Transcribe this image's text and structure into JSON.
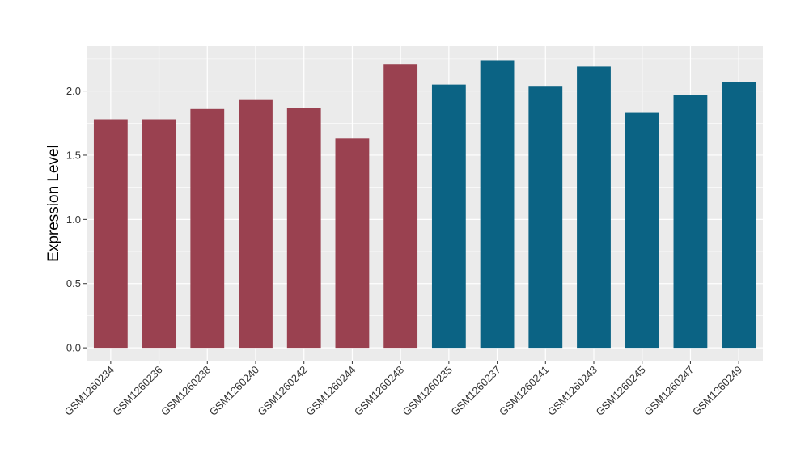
{
  "chart_data": {
    "type": "bar",
    "title": "",
    "xlabel": "",
    "ylabel": "Expression Level",
    "ylim": [
      -0.1,
      2.35
    ],
    "yticks": [
      0.0,
      0.5,
      1.0,
      1.5,
      2.0
    ],
    "ytick_labels": [
      "0.0",
      "0.5",
      "1.0",
      "1.5",
      "2.0"
    ],
    "grid": true,
    "legend": "none",
    "categories": [
      "GSM1260234",
      "GSM1260236",
      "GSM1260238",
      "GSM1260240",
      "GSM1260242",
      "GSM1260244",
      "GSM1260248",
      "GSM1260235",
      "GSM1260237",
      "GSM1260241",
      "GSM1260243",
      "GSM1260245",
      "GSM1260247",
      "GSM1260249"
    ],
    "values": [
      1.78,
      1.78,
      1.86,
      1.93,
      1.87,
      1.63,
      2.21,
      2.05,
      2.24,
      2.04,
      2.19,
      1.83,
      1.97,
      2.07
    ],
    "bar_colors": [
      "#9a4150",
      "#9a4150",
      "#9a4150",
      "#9a4150",
      "#9a4150",
      "#9a4150",
      "#9a4150",
      "#0b6384",
      "#0b6384",
      "#0b6384",
      "#0b6384",
      "#0b6384",
      "#0b6384",
      "#0b6384"
    ],
    "panel_background": "#ebebeb",
    "grid_color": "#ffffff"
  }
}
